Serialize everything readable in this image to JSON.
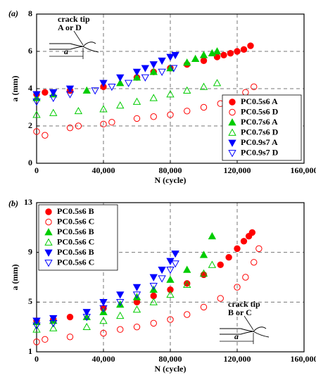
{
  "chart_data": [
    {
      "type": "scatter",
      "panel_label": "(a)",
      "xlabel": "N (cycle)",
      "ylabel": "a (mm)",
      "xlim": [
        0,
        160000
      ],
      "xticks": [
        0,
        {
          "value": 40000,
          "label": "40,000"
        },
        {
          "value": 80000,
          "label": "80,000"
        },
        {
          "value": 120000,
          "label": "120,000"
        },
        {
          "value": 160000,
          "label": "160,000"
        }
      ],
      "ylim": [
        0,
        8
      ],
      "yticks": [
        0,
        2,
        4,
        6,
        8
      ],
      "grid": true,
      "legend": "lower right",
      "annotations": [
        "crack tip",
        "A or D",
        "a"
      ],
      "series": [
        {
          "name": "PC0.5s6 A",
          "color": "#ff0000",
          "marker": "circle",
          "filled": true,
          "x": [
            0,
            5000,
            20000,
            40000,
            60000,
            70000,
            80000,
            90000,
            100000,
            108000,
            112000,
            116000,
            120000,
            124000,
            128000
          ],
          "values": [
            3.7,
            3.8,
            3.9,
            4.1,
            4.6,
            4.9,
            5.1,
            5.3,
            5.5,
            5.7,
            5.8,
            5.9,
            6.0,
            6.1,
            6.3
          ]
        },
        {
          "name": "PC0.5s6 D",
          "color": "#ff0000",
          "marker": "circle",
          "filled": false,
          "x": [
            0,
            5000,
            20000,
            25000,
            40000,
            45000,
            60000,
            70000,
            80000,
            90000,
            100000,
            110000,
            120000,
            125000,
            130000
          ],
          "values": [
            1.7,
            1.5,
            1.9,
            2.0,
            2.1,
            2.2,
            2.4,
            2.5,
            2.6,
            2.8,
            3.0,
            3.2,
            3.5,
            3.8,
            4.1
          ]
        },
        {
          "name": "PC0.7s6 A",
          "color": "#00cc00",
          "marker": "triangle-up",
          "filled": true,
          "x": [
            0,
            10000,
            30000,
            50000,
            60000,
            70000,
            80000,
            90000,
            95000,
            100000,
            105000,
            108000
          ],
          "values": [
            3.5,
            3.7,
            3.9,
            4.3,
            4.6,
            4.9,
            5.1,
            5.4,
            5.6,
            5.8,
            5.9,
            6.0
          ]
        },
        {
          "name": "PC0.7s6 D",
          "color": "#00cc00",
          "marker": "triangle-up",
          "filled": false,
          "x": [
            0,
            10000,
            25000,
            40000,
            50000,
            60000,
            70000,
            80000,
            90000,
            100000,
            108000
          ],
          "values": [
            2.6,
            2.7,
            2.8,
            2.9,
            3.1,
            3.3,
            3.5,
            3.7,
            3.9,
            4.1,
            4.3
          ]
        },
        {
          "name": "PC0.9s7 A",
          "color": "#0000ff",
          "marker": "triangle-down",
          "filled": true,
          "x": [
            0,
            10000,
            20000,
            40000,
            50000,
            60000,
            65000,
            70000,
            75000,
            80000,
            83000
          ],
          "values": [
            3.7,
            3.8,
            4.0,
            4.3,
            4.6,
            4.9,
            5.1,
            5.3,
            5.5,
            5.7,
            5.8
          ]
        },
        {
          "name": "PC0.9s7 D",
          "color": "#0000ff",
          "marker": "triangle-down",
          "filled": false,
          "x": [
            0,
            10000,
            20000,
            35000,
            45000,
            55000,
            65000,
            75000,
            82000
          ],
          "values": [
            3.3,
            3.5,
            3.7,
            3.9,
            4.1,
            4.3,
            4.6,
            4.9,
            5.1
          ]
        }
      ]
    },
    {
      "type": "scatter",
      "panel_label": "(b)",
      "xlabel": "N (cycle)",
      "ylabel": "a (mm)",
      "xlim": [
        0,
        160000
      ],
      "xticks": [
        0,
        {
          "value": 40000,
          "label": "40,000"
        },
        {
          "value": 80000,
          "label": "80,000"
        },
        {
          "value": 120000,
          "label": "120,000"
        },
        {
          "value": 160000,
          "label": "160,000"
        }
      ],
      "ylim": [
        1,
        13
      ],
      "yticks": [
        1,
        5,
        9,
        13
      ],
      "grid": true,
      "legend": "upper left",
      "annotations": [
        "crack tip",
        "B or C",
        "a"
      ],
      "series": [
        {
          "name": "PC0.5s6 B",
          "color": "#ff0000",
          "marker": "circle",
          "filled": true,
          "x": [
            0,
            10000,
            20000,
            40000,
            60000,
            70000,
            80000,
            90000,
            100000,
            110000,
            115000,
            120000,
            124000,
            127000,
            129000
          ],
          "values": [
            3.5,
            3.6,
            3.8,
            4.5,
            5.0,
            5.5,
            6.0,
            6.5,
            7.2,
            8.0,
            8.6,
            9.3,
            9.9,
            10.3,
            10.6
          ]
        },
        {
          "name": "PC0.5s6 C",
          "color": "#ff0000",
          "marker": "circle",
          "filled": false,
          "x": [
            0,
            5000,
            20000,
            40000,
            50000,
            60000,
            70000,
            80000,
            90000,
            100000,
            110000,
            120000,
            125000,
            130000,
            133000
          ],
          "values": [
            1.8,
            2.0,
            2.2,
            2.5,
            2.8,
            3.0,
            3.3,
            3.6,
            4.0,
            4.6,
            5.3,
            6.2,
            7.0,
            8.2,
            9.3
          ]
        },
        {
          "name": "PC0.5s6 B",
          "color": "#00cc00",
          "marker": "triangle-up",
          "filled": true,
          "x": [
            0,
            10000,
            30000,
            40000,
            50000,
            60000,
            70000,
            80000,
            90000,
            100000,
            105000
          ],
          "values": [
            3.4,
            3.5,
            3.8,
            4.2,
            4.8,
            5.4,
            6.0,
            6.8,
            7.6,
            8.8,
            10.3
          ]
        },
        {
          "name": "PC0.5s6 C",
          "color": "#00cc00",
          "marker": "triangle-up",
          "filled": false,
          "x": [
            0,
            10000,
            30000,
            40000,
            50000,
            60000,
            70000,
            80000,
            90000,
            100000,
            105000
          ],
          "values": [
            2.8,
            2.9,
            3.0,
            3.5,
            3.9,
            4.4,
            5.0,
            5.6,
            6.4,
            7.3,
            8.0
          ]
        },
        {
          "name": "PC0.5s6 B",
          "color": "#0000ff",
          "marker": "triangle-down",
          "filled": true,
          "x": [
            0,
            10000,
            30000,
            40000,
            50000,
            60000,
            70000,
            75000,
            80000,
            83000
          ],
          "values": [
            3.5,
            3.7,
            4.2,
            5.0,
            5.6,
            6.2,
            7.0,
            7.6,
            8.3,
            8.9
          ]
        },
        {
          "name": "PC0.5s6 C",
          "color": "#0000ff",
          "marker": "triangle-down",
          "filled": false,
          "x": [
            0,
            10000,
            30000,
            40000,
            50000,
            60000,
            70000,
            75000,
            80000,
            83000
          ],
          "values": [
            3.1,
            3.3,
            3.8,
            4.5,
            5.0,
            5.6,
            6.3,
            6.9,
            7.6,
            8.1
          ]
        }
      ]
    }
  ]
}
